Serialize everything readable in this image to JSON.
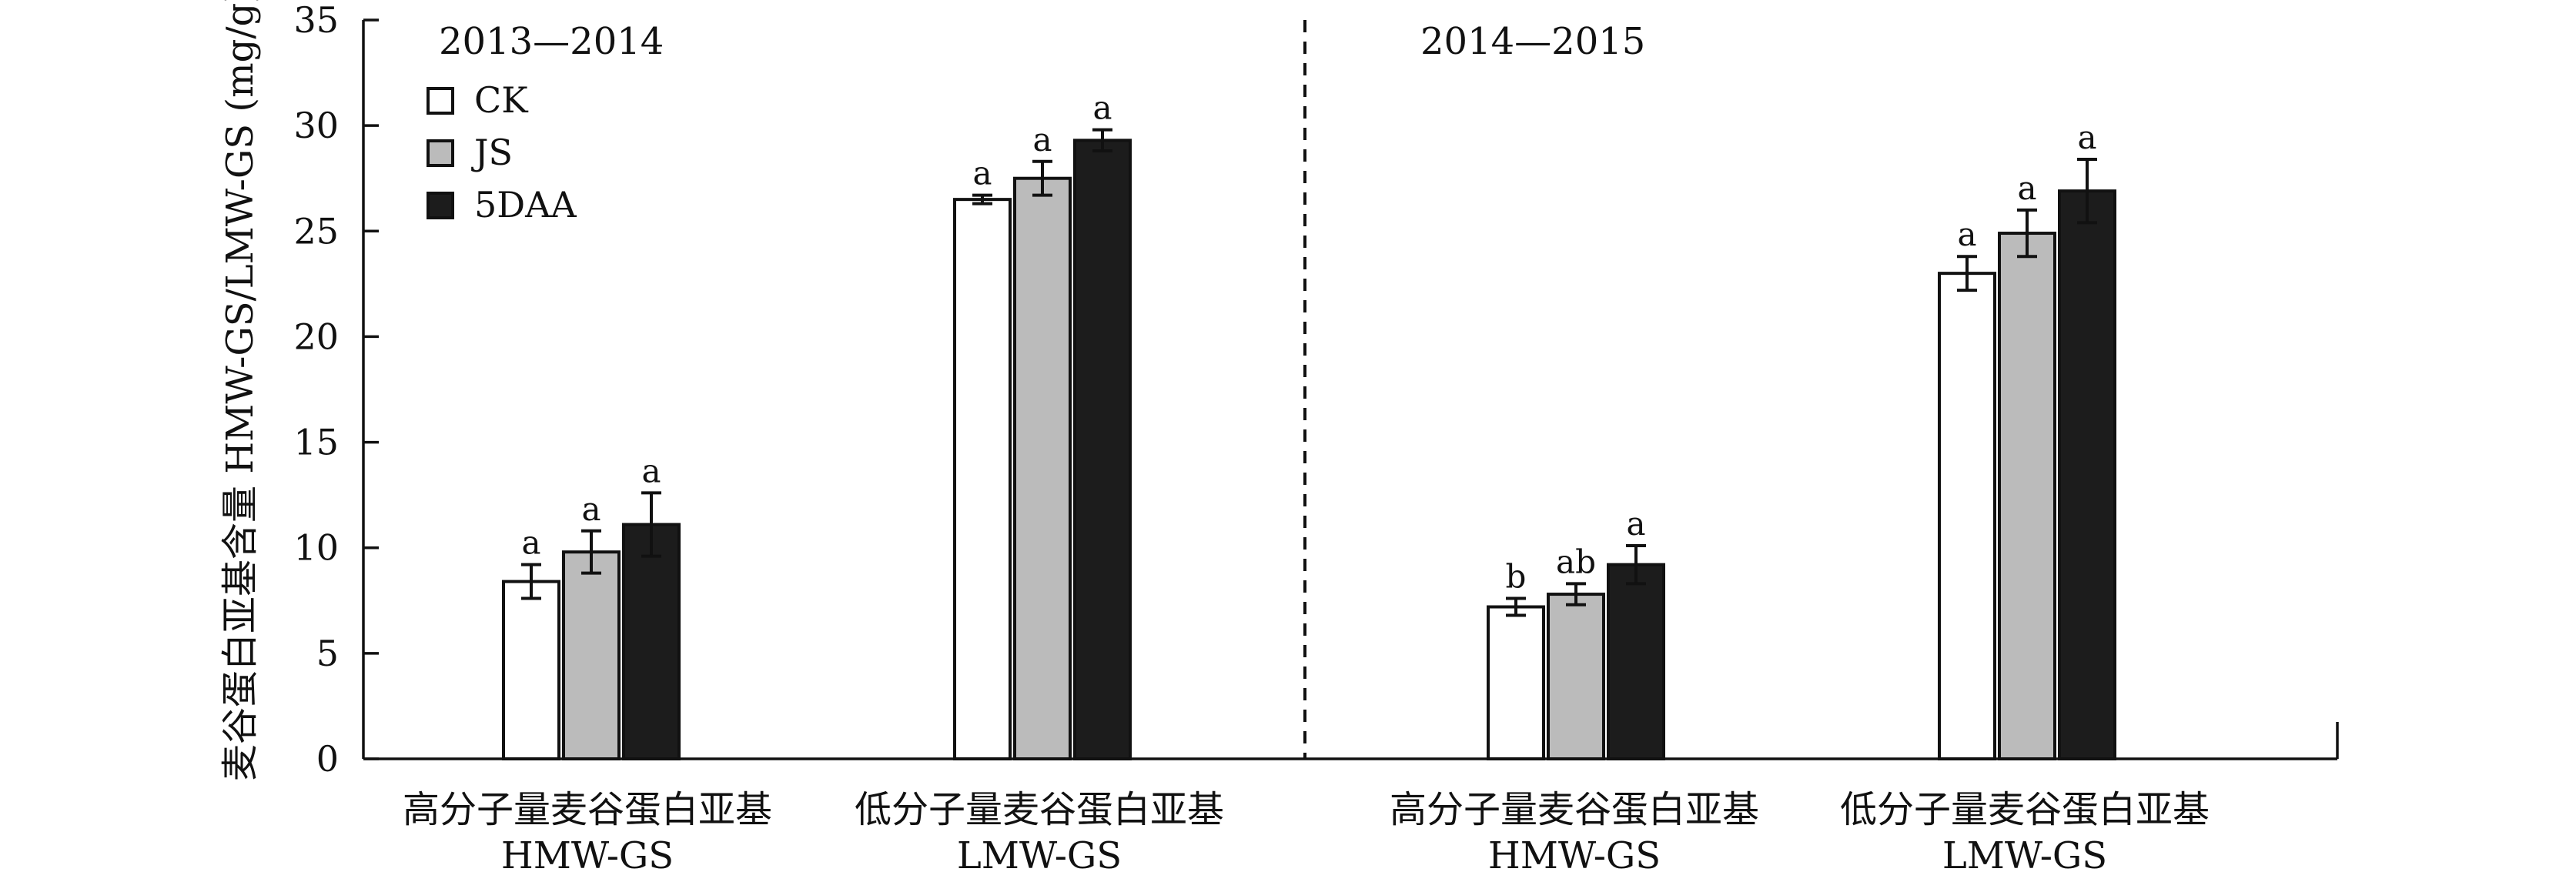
{
  "chart_data": {
    "type": "bar",
    "ylabel": "麦谷蛋白亚基含量 HMW-GS/LMW-GS (mg/g)",
    "ylim": [
      0,
      35
    ],
    "yticks": [
      0,
      5,
      10,
      15,
      20,
      25,
      30,
      35
    ],
    "legend": {
      "placement": "top-left",
      "entries": [
        {
          "name": "CK",
          "color": "#ffffff"
        },
        {
          "name": "JS",
          "color": "#bbbbbb"
        },
        {
          "name": "5DAA",
          "color": "#1c1c1c"
        }
      ]
    },
    "panels": [
      {
        "period": "2013—2014",
        "groups": [
          {
            "label_cn": "高分子量麦谷蛋白亚基",
            "label_en": "HMW-GS",
            "values": [
              8.4,
              9.8,
              11.1
            ],
            "errors": [
              0.8,
              1.0,
              1.5
            ],
            "significance": [
              "a",
              "a",
              "a"
            ]
          },
          {
            "label_cn": "低分子量麦谷蛋白亚基",
            "label_en": "LMW-GS",
            "values": [
              26.5,
              27.5,
              29.3
            ],
            "errors": [
              0.2,
              0.8,
              0.5
            ],
            "significance": [
              "a",
              "a",
              "a"
            ]
          }
        ]
      },
      {
        "period": "2014—2015",
        "groups": [
          {
            "label_cn": "高分子量麦谷蛋白亚基",
            "label_en": "HMW-GS",
            "values": [
              7.2,
              7.8,
              9.2
            ],
            "errors": [
              0.4,
              0.5,
              0.9
            ],
            "significance": [
              "b",
              "ab",
              "a"
            ]
          },
          {
            "label_cn": "低分子量麦谷蛋白亚基",
            "label_en": "LMW-GS",
            "values": [
              23.0,
              24.9,
              26.9
            ],
            "errors": [
              0.8,
              1.1,
              1.5
            ],
            "significance": [
              "a",
              "a",
              "a"
            ]
          }
        ]
      }
    ],
    "series_names": [
      "CK",
      "JS",
      "5DAA"
    ]
  }
}
